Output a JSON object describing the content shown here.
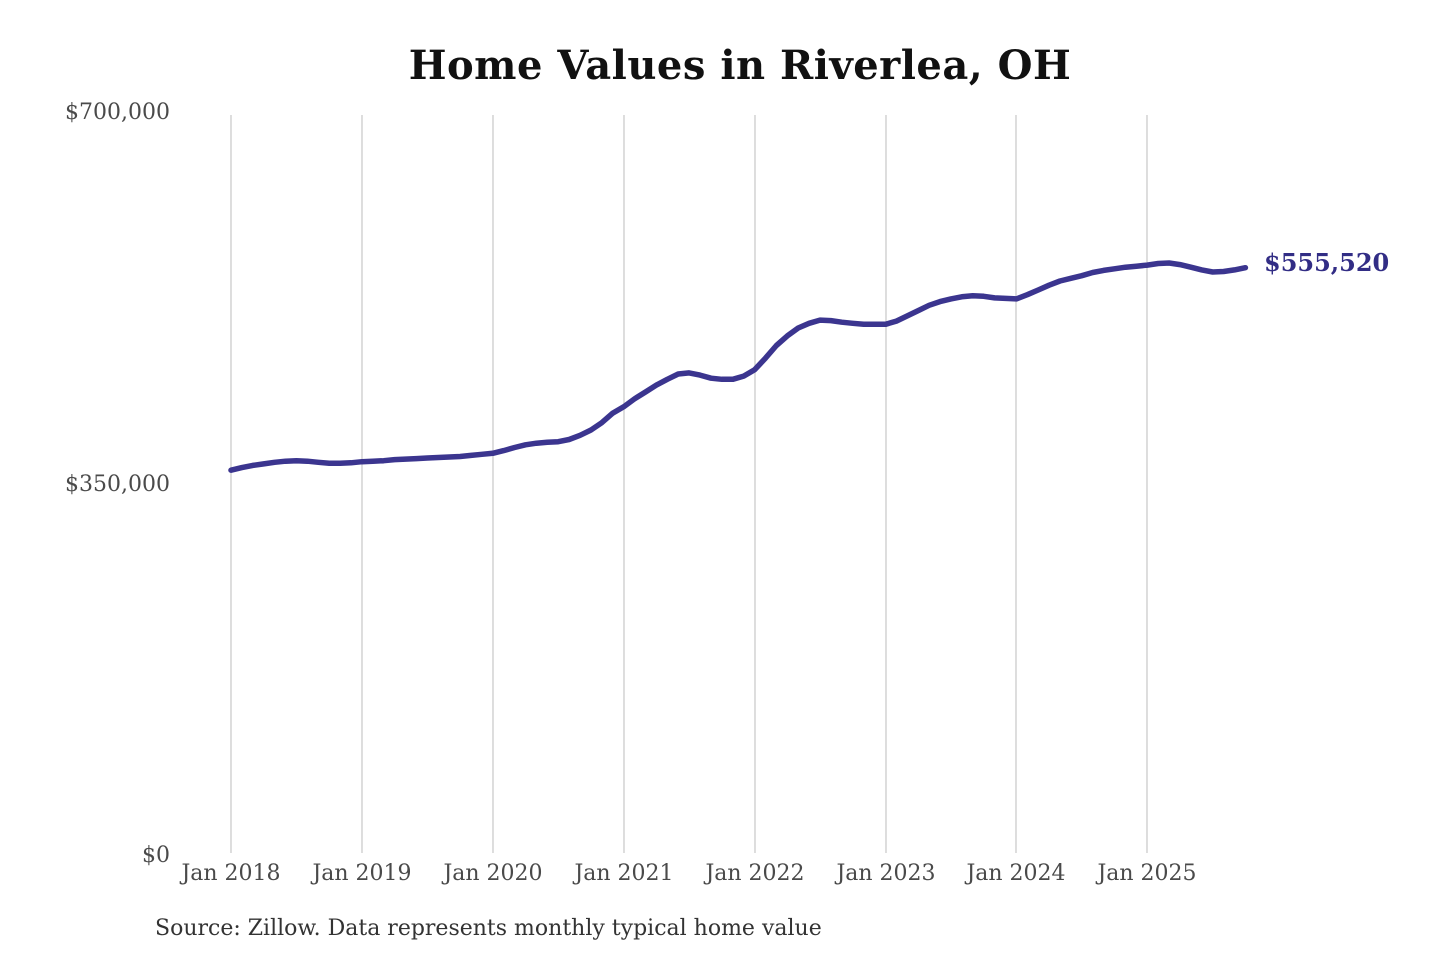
{
  "header": {
    "title": "Home Values in Riverlea, OH"
  },
  "y_axis": {
    "ticks": [
      "$700,000",
      "$350,000",
      "$0"
    ]
  },
  "x_axis": {
    "ticks": [
      "Jan 2018",
      "Jan 2019",
      "Jan 2020",
      "Jan 2021",
      "Jan 2022",
      "Jan 2023",
      "Jan 2024",
      "Jan 2025"
    ]
  },
  "annotation": {
    "end_value_label": "$555,520"
  },
  "footer": {
    "source": "Source: Zillow. Data represents monthly typical home value"
  },
  "colors": {
    "line": "#3b358f",
    "annotation_text": "#322d85",
    "grid": "#cbcbcb",
    "axis_text": "#4a4a4a",
    "title_text": "#111111",
    "background": "#ffffff"
  },
  "chart_data": {
    "type": "line",
    "title": "Home Values in Riverlea, OH",
    "xlabel": "",
    "ylabel": "",
    "ylim": [
      0,
      700000
    ],
    "yticks": [
      0,
      350000,
      700000
    ],
    "ytick_labels": [
      "$0",
      "$350,000",
      "$700,000"
    ],
    "xtick_labels": [
      "Jan 2018",
      "Jan 2019",
      "Jan 2020",
      "Jan 2021",
      "Jan 2022",
      "Jan 2023",
      "Jan 2024",
      "Jan 2025"
    ],
    "grid": "vertical-only",
    "legend": "none",
    "series_name": "Monthly typical home value",
    "line_color": "#3b358f",
    "end_label": "$555,520",
    "x": [
      "Jan 2018",
      "Feb 2018",
      "Mar 2018",
      "Apr 2018",
      "May 2018",
      "Jun 2018",
      "Jul 2018",
      "Aug 2018",
      "Sep 2018",
      "Oct 2018",
      "Nov 2018",
      "Dec 2018",
      "Jan 2019",
      "Feb 2019",
      "Mar 2019",
      "Apr 2019",
      "May 2019",
      "Jun 2019",
      "Jul 2019",
      "Aug 2019",
      "Sep 2019",
      "Oct 2019",
      "Nov 2019",
      "Dec 2019",
      "Jan 2020",
      "Feb 2020",
      "Mar 2020",
      "Apr 2020",
      "May 2020",
      "Jun 2020",
      "Jul 2020",
      "Aug 2020",
      "Sep 2020",
      "Oct 2020",
      "Nov 2020",
      "Dec 2020",
      "Jan 2021",
      "Feb 2021",
      "Mar 2021",
      "Apr 2021",
      "May 2021",
      "Jun 2021",
      "Jul 2021",
      "Aug 2021",
      "Sep 2021",
      "Oct 2021",
      "Nov 2021",
      "Dec 2021",
      "Jan 2022",
      "Feb 2022",
      "Mar 2022",
      "Apr 2022",
      "May 2022",
      "Jun 2022",
      "Jul 2022",
      "Aug 2022",
      "Sep 2022",
      "Oct 2022",
      "Nov 2022",
      "Dec 2022",
      "Jan 2023",
      "Feb 2023",
      "Mar 2023",
      "Apr 2023",
      "May 2023",
      "Jun 2023",
      "Jul 2023",
      "Aug 2023",
      "Sep 2023",
      "Oct 2023",
      "Nov 2023",
      "Dec 2023",
      "Jan 2024",
      "Feb 2024",
      "Mar 2024",
      "Apr 2024",
      "May 2024",
      "Jun 2024",
      "Jul 2024",
      "Aug 2024",
      "Sep 2024",
      "Oct 2024",
      "Nov 2024",
      "Dec 2024",
      "Jan 2025",
      "Feb 2025",
      "Mar 2025",
      "Apr 2025",
      "May 2025",
      "Jun 2025",
      "Jul 2025",
      "Aug 2025",
      "Sep 2025",
      "Oct 2025"
    ],
    "values": [
      364000,
      366500,
      368500,
      370000,
      371500,
      372500,
      373000,
      372500,
      371500,
      370500,
      370500,
      371000,
      372000,
      372500,
      373000,
      374000,
      374500,
      375000,
      375500,
      376000,
      376500,
      377000,
      378000,
      379000,
      380000,
      382500,
      385500,
      388000,
      389500,
      390500,
      391000,
      393000,
      397000,
      402000,
      409000,
      418000,
      424000,
      431500,
      438000,
      444500,
      450000,
      455000,
      456000,
      454000,
      451000,
      450000,
      450000,
      453000,
      459000,
      470000,
      482000,
      491000,
      498500,
      503000,
      506000,
      505500,
      504000,
      503000,
      502000,
      502000,
      502000,
      505000,
      510000,
      515000,
      520000,
      523500,
      526000,
      528000,
      529000,
      528500,
      527000,
      526500,
      526000,
      530000,
      534500,
      539000,
      543000,
      545500,
      548000,
      551000,
      553000,
      554500,
      556000,
      557000,
      558000,
      559500,
      560000,
      558500,
      556000,
      553500,
      551500,
      552000,
      553500,
      555520
    ]
  }
}
